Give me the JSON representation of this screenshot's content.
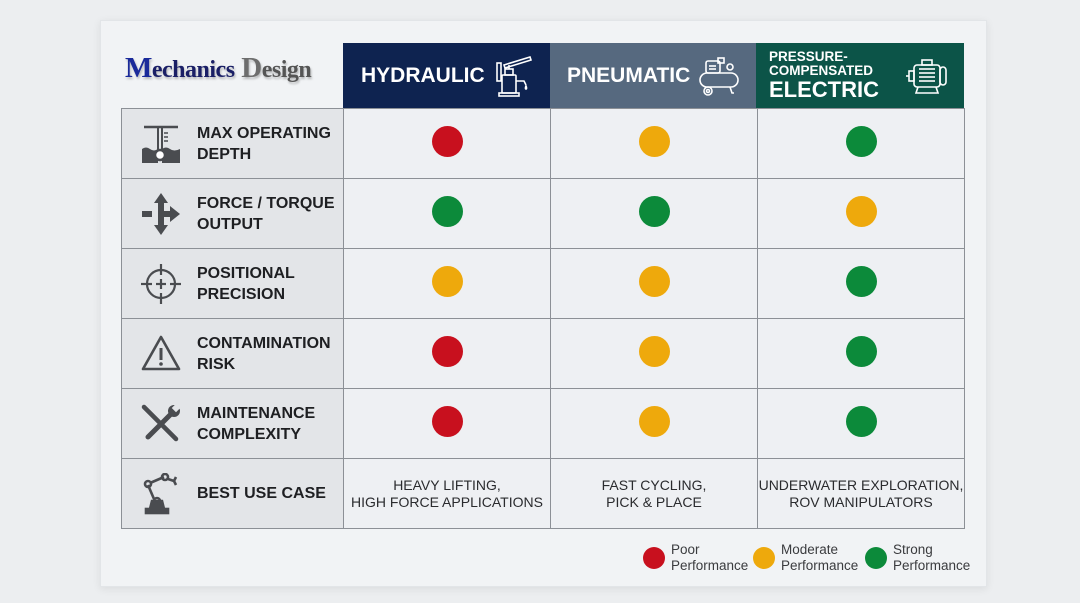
{
  "logo": {
    "first_initial": "M",
    "first_rest": "echanics",
    "second_initial": "D",
    "second_rest": "esign"
  },
  "columns": [
    {
      "id": "hydraulic",
      "label": "HYDRAULIC",
      "icon": "hydraulic-jack-icon",
      "color": "#0e2350"
    },
    {
      "id": "pneumatic",
      "label": "PNEUMATIC",
      "icon": "air-compressor-icon",
      "color": "#56697f"
    },
    {
      "id": "electric",
      "label_small_1": "PRESSURE-",
      "label_small_2": "COMPENSATED",
      "label_big": "ELECTRIC",
      "icon": "electric-motor-icon",
      "color": "#0c5448"
    }
  ],
  "status_colors": {
    "poor": "#c8101e",
    "moderate": "#eea90c",
    "strong": "#0c8a3a"
  },
  "rows": [
    {
      "label_1": "MAX OPERATING",
      "label_2": "DEPTH",
      "icon": "depth-gauge-icon",
      "ratings": [
        "poor",
        "moderate",
        "strong"
      ]
    },
    {
      "label_1": "FORCE / TORQUE",
      "label_2": "OUTPUT",
      "icon": "force-arrows-icon",
      "ratings": [
        "strong",
        "strong",
        "moderate"
      ]
    },
    {
      "label_1": "POSITIONAL",
      "label_2": "PRECISION",
      "icon": "crosshair-icon",
      "ratings": [
        "moderate",
        "moderate",
        "strong"
      ]
    },
    {
      "label_1": "CONTAMINATION",
      "label_2": "RISK",
      "icon": "warning-triangle-icon",
      "ratings": [
        "poor",
        "moderate",
        "strong"
      ]
    },
    {
      "label_1": "MAINTENANCE",
      "label_2": "COMPLEXITY",
      "icon": "wrench-screwdriver-icon",
      "ratings": [
        "poor",
        "moderate",
        "strong"
      ]
    }
  ],
  "best_use": {
    "label": "BEST USE CASE",
    "icon": "robot-arm-icon",
    "values": [
      {
        "line1": "HEAVY LIFTING,",
        "line2": "HIGH FORCE APPLICATIONS"
      },
      {
        "line1": "FAST CYCLING,",
        "line2": "PICK & PLACE"
      },
      {
        "line1": "UNDERWATER EXPLORATION,",
        "line2": "ROV MANIPULATORS"
      }
    ]
  },
  "legend": [
    {
      "key": "poor",
      "line1": "Poor",
      "line2": "Performance"
    },
    {
      "key": "moderate",
      "line1": "Moderate",
      "line2": "Performance"
    },
    {
      "key": "strong",
      "line1": "Strong",
      "line2": "Performance"
    }
  ]
}
